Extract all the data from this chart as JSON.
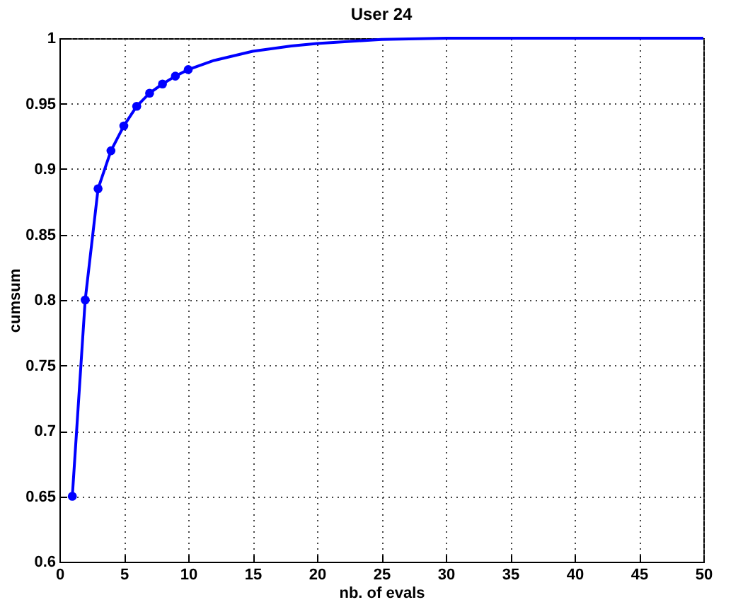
{
  "chart_data": {
    "type": "line",
    "title": "User 24",
    "xlabel": "nb. of evals",
    "ylabel": "cumsum",
    "series": [
      {
        "color": "#0000ff",
        "marker": "circle",
        "x": [
          1,
          2,
          3,
          4,
          5,
          6,
          7,
          8,
          9,
          10
        ],
        "values": [
          0.65,
          0.8,
          0.885,
          0.914,
          0.933,
          0.948,
          0.958,
          0.965,
          0.971,
          0.976
        ]
      },
      {
        "color": "#0000ff",
        "marker": "none",
        "x": [
          10,
          12,
          15,
          18,
          20,
          25,
          30,
          40,
          50
        ],
        "values": [
          0.976,
          0.983,
          0.99,
          0.994,
          0.996,
          0.999,
          1,
          1,
          1
        ]
      }
    ],
    "xlim": [
      0,
      50
    ],
    "xticks": [
      0,
      5,
      10,
      15,
      20,
      25,
      30,
      35,
      40,
      45,
      50
    ],
    "ylim": [
      0.6,
      1
    ],
    "yticks": [
      0.6,
      0.65,
      0.7,
      0.75,
      0.8,
      0.85,
      0.9,
      0.95,
      1
    ],
    "grid": true,
    "line_style": "solid"
  }
}
